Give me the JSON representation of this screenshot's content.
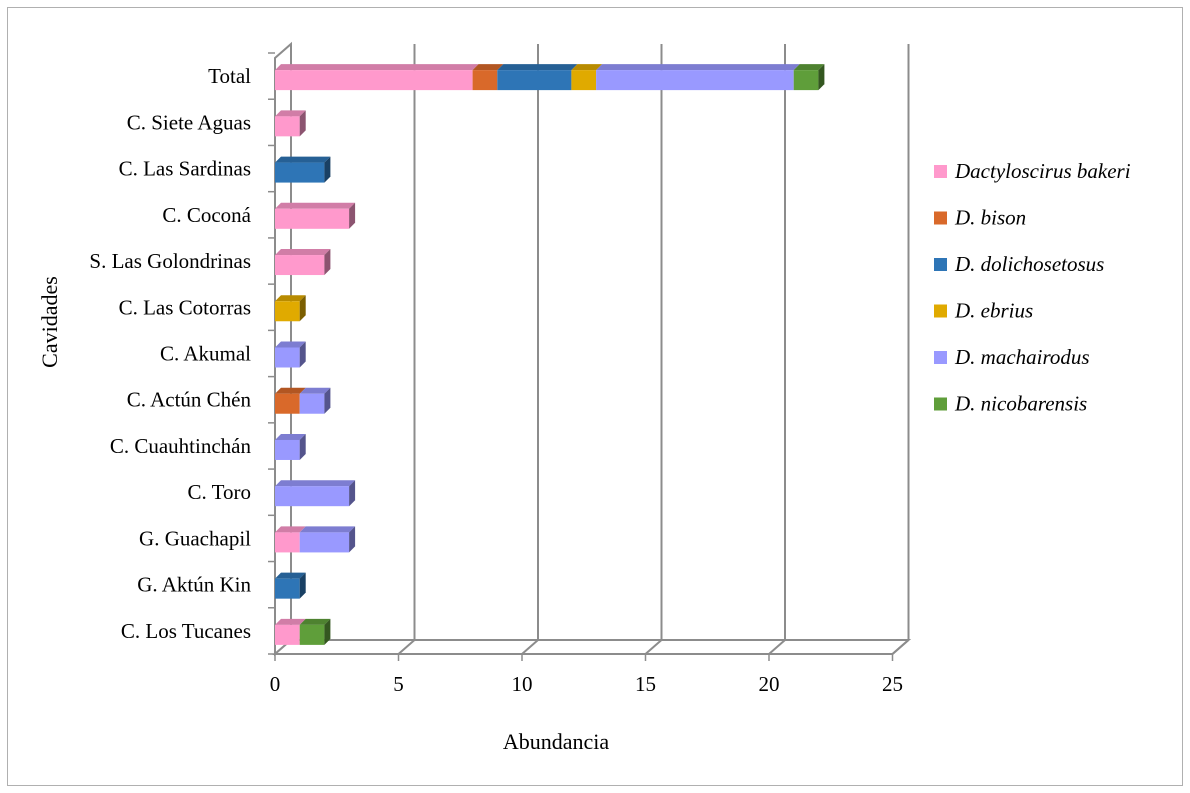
{
  "chart_data": {
    "type": "bar",
    "orientation": "horizontal",
    "stacked": true,
    "three_d": true,
    "xlabel": "Abundancia",
    "ylabel": "Cavidades",
    "xlim": [
      0,
      25
    ],
    "xticks": [
      0,
      5,
      10,
      15,
      20,
      25
    ],
    "grid": "vertical",
    "legend_position": "right",
    "categories": [
      "Total",
      "C. Siete Aguas",
      "C. Las Sardinas",
      "C. Coconá",
      "S. Las Golondrinas",
      "C. Las Cotorras",
      "C.  Akumal",
      "C.  Actún Chén",
      "C. Cuauhtinchán",
      "C. Toro",
      "G. Guachapil",
      "G. Aktún Kin",
      "C. Los Tucanes"
    ],
    "series": [
      {
        "name": "Dactyloscirus bakeri",
        "color": "#ff99cc",
        "values": [
          8,
          1,
          0,
          3,
          2,
          0,
          0,
          0,
          0,
          0,
          1,
          0,
          1
        ]
      },
      {
        "name": "D. bison",
        "color": "#d9692a",
        "values": [
          1,
          0,
          0,
          0,
          0,
          0,
          0,
          1,
          0,
          0,
          0,
          0,
          0
        ]
      },
      {
        "name": "D. dolichosetosus",
        "color": "#2e75b6",
        "values": [
          3,
          0,
          2,
          0,
          0,
          0,
          0,
          0,
          0,
          0,
          0,
          1,
          0
        ]
      },
      {
        "name": "D. ebrius",
        "color": "#e0aa00",
        "values": [
          1,
          0,
          0,
          0,
          0,
          1,
          0,
          0,
          0,
          0,
          0,
          0,
          0
        ]
      },
      {
        "name": "D. machairodus",
        "color": "#9999ff",
        "values": [
          8,
          0,
          0,
          0,
          0,
          0,
          1,
          1,
          1,
          3,
          2,
          0,
          0
        ]
      },
      {
        "name": "D. nicobarensis",
        "color": "#5f9e3a",
        "values": [
          1,
          0,
          0,
          0,
          0,
          0,
          0,
          0,
          0,
          0,
          0,
          0,
          1
        ]
      }
    ]
  }
}
